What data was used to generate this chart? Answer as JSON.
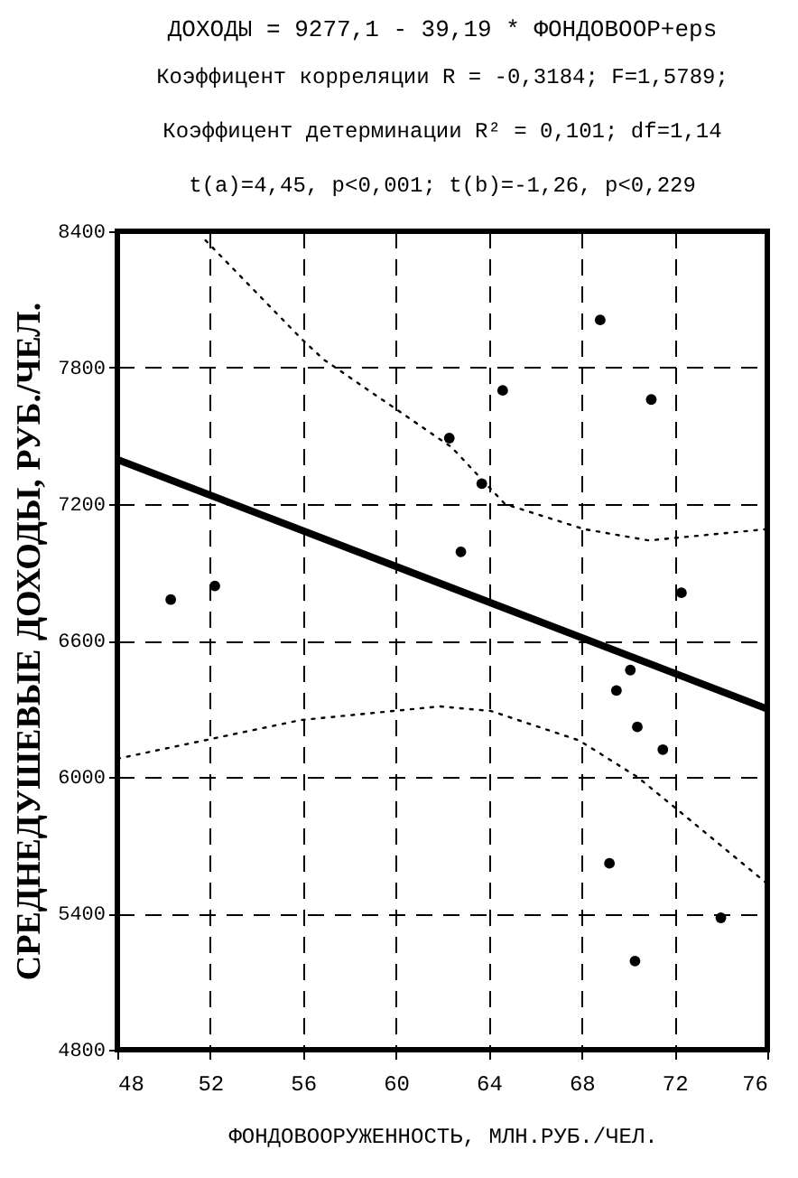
{
  "chart_data": {
    "type": "scatter",
    "title": "ДОХОДЫ = 9277,1 - 39,19 * ФОНДОВООР+eps",
    "subtitle": "Коэффицент корреляции R = -0,3184; F=1,5789;",
    "annotations": [
      "Коэффицент детерминации R² = 0,101; df=1,14",
      "t(a)=4,45, p<0,001; t(b)=-1,26, p<0,229"
    ],
    "xlabel": "ФОНДОВООРУЖЕННОСТЬ, МЛН.РУБ./ЧЕЛ.",
    "ylabel": "СРЕДНЕДУШЕВЫЕ ДОХОДЫ, РУБ./ЧЕЛ.",
    "xlim": [
      48,
      76
    ],
    "xticks": [
      48,
      52,
      56,
      60,
      64,
      68,
      72,
      76
    ],
    "ylim": [
      4800,
      8400
    ],
    "yticks": [
      4800,
      5400,
      6000,
      6600,
      7200,
      7800,
      8400
    ],
    "grid": true,
    "series": [
      {
        "marker": "circle",
        "color": "#000000",
        "x": [
          50.3,
          52.2,
          62.3,
          62.8,
          63.7,
          64.6,
          68.8,
          71.0,
          72.3,
          70.1,
          69.5,
          70.4,
          71.5,
          69.2,
          74.0,
          70.3
        ],
        "values": [
          6780,
          6840,
          7490,
          6990,
          7290,
          7700,
          8010,
          7660,
          6810,
          6470,
          6380,
          6220,
          6120,
          5620,
          5380,
          5190
        ]
      },
      {
        "type": "line",
        "line_style": "solid",
        "color": "#000000",
        "x": [
          48,
          76
        ],
        "values": [
          7396,
          6299
        ]
      },
      {
        "type": "line",
        "line_style": "dotted",
        "color": "#000000",
        "x": [
          51.8,
          55.9,
          56.9,
          62.4,
          64.7,
          68.1,
          70.9,
          76
        ],
        "values": [
          8360,
          7930,
          7835,
          7450,
          7200,
          7090,
          7040,
          7090
        ]
      },
      {
        "type": "line",
        "line_style": "dotted",
        "color": "#000000",
        "x": [
          48,
          55.9,
          61.9,
          64.1,
          67.9,
          70.4,
          72.2,
          76
        ],
        "values": [
          6080,
          6250,
          6310,
          6290,
          6160,
          6000,
          5850,
          5530
        ]
      }
    ]
  }
}
